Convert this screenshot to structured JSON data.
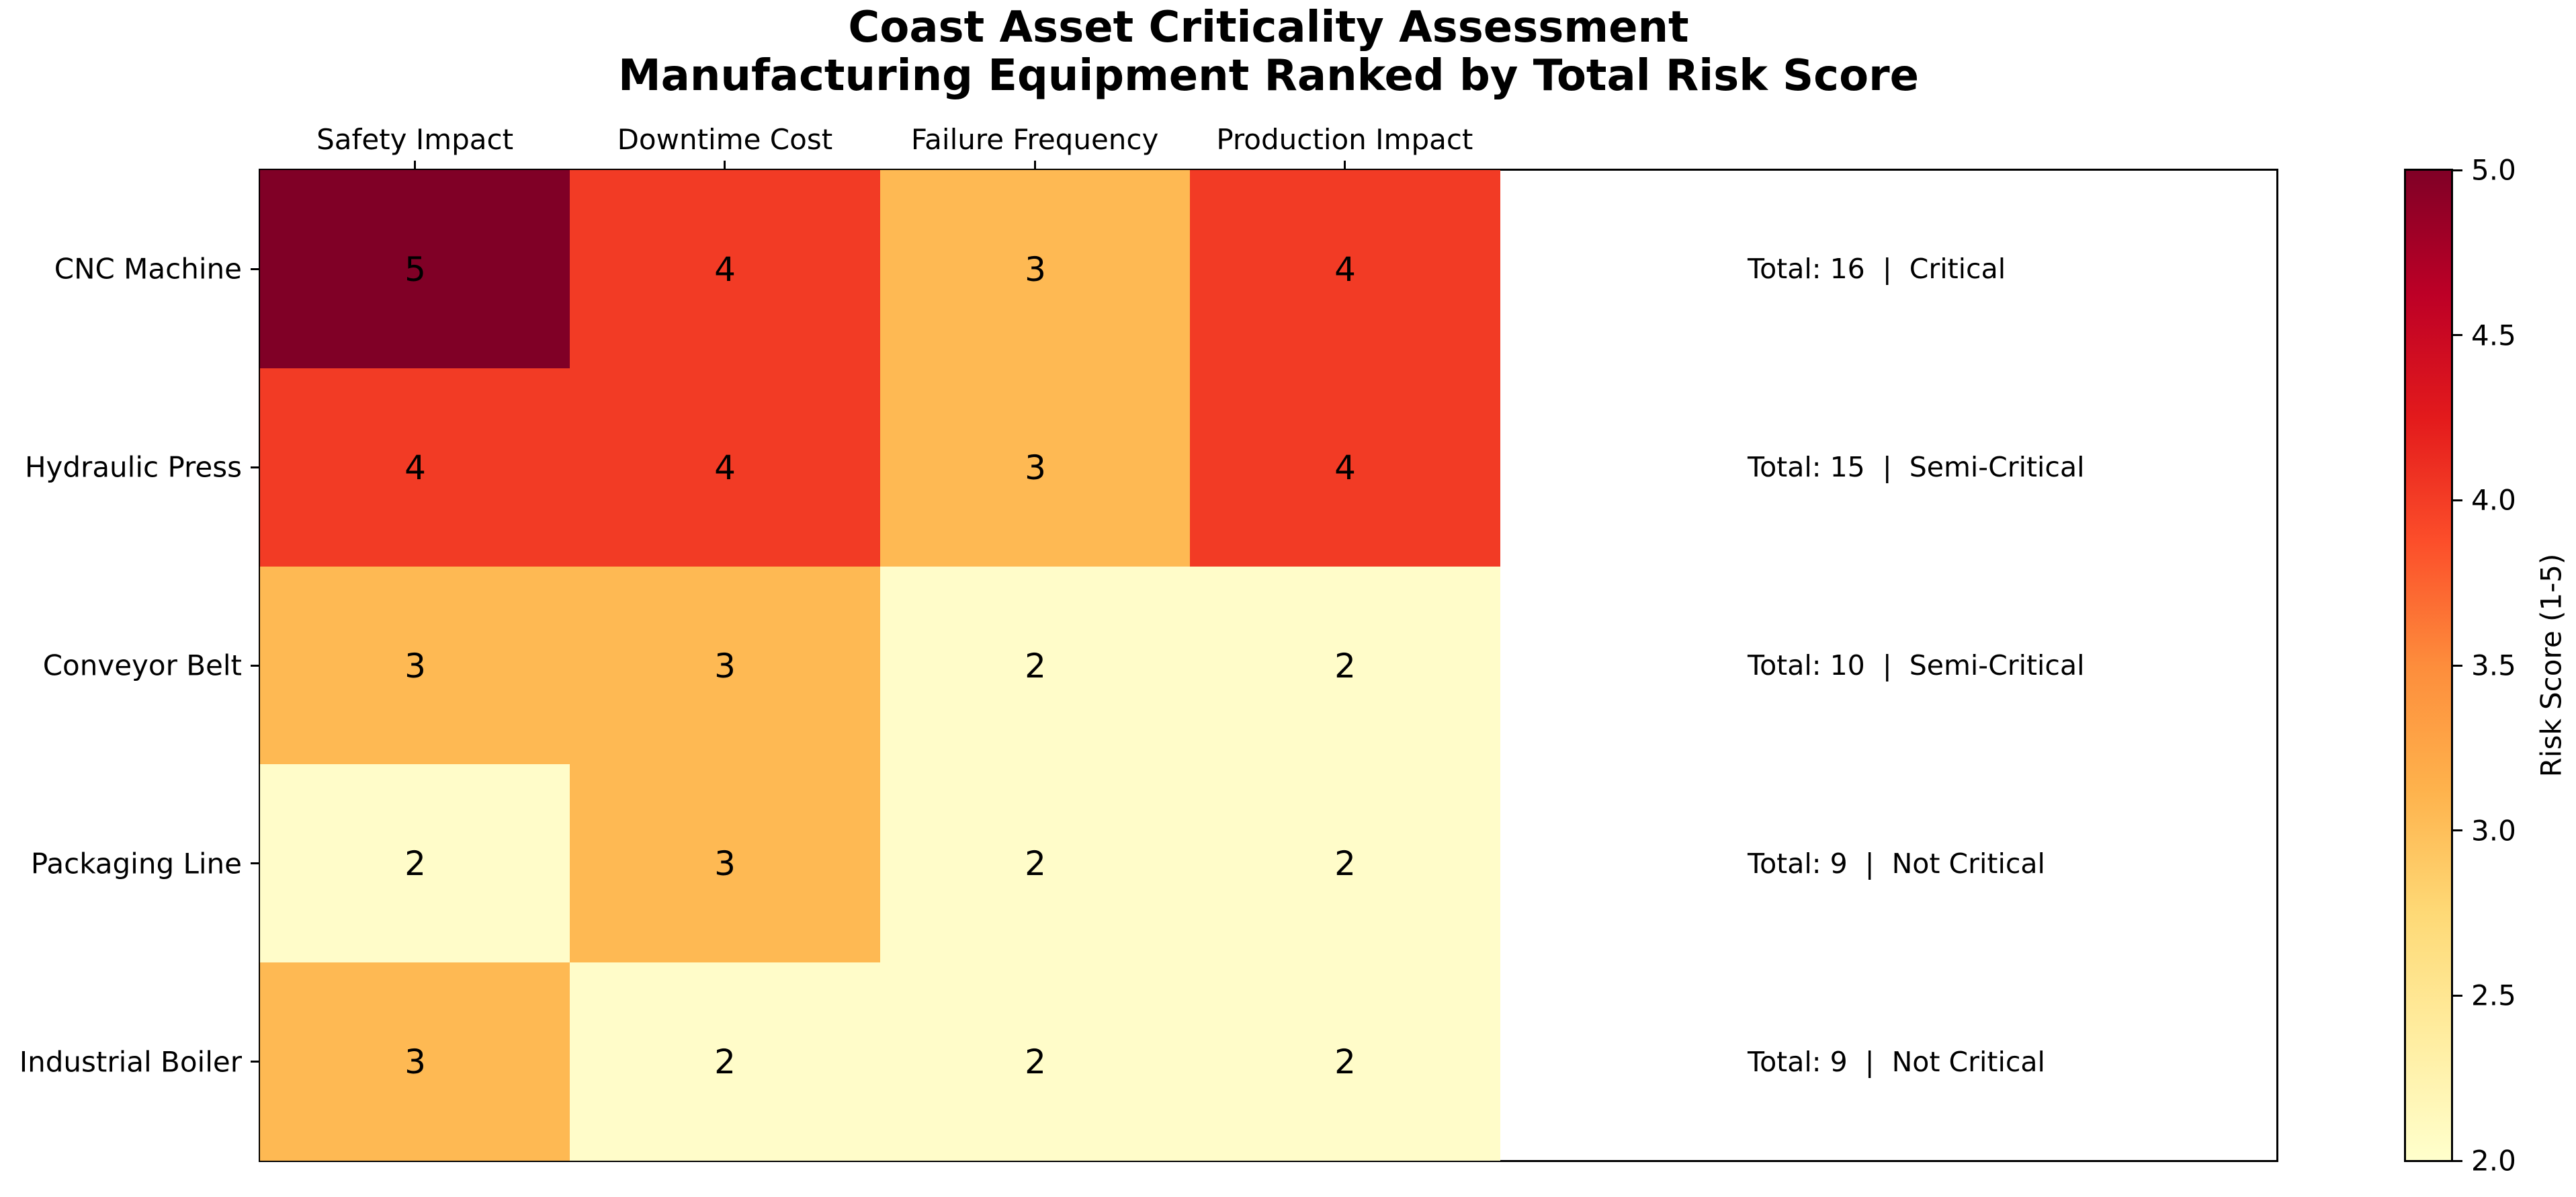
{
  "chart_data": {
    "type": "heatmap",
    "title_line1": "Coast Asset Criticality Assessment",
    "title_line2": "Manufacturing Equipment Ranked by Total Risk Score",
    "columns": [
      "Safety Impact",
      "Downtime Cost",
      "Failure Frequency",
      "Production Impact"
    ],
    "rows": [
      {
        "label": "CNC Machine",
        "values": [
          5,
          4,
          3,
          4
        ],
        "total": 16,
        "criticality": "Critical",
        "annotation": "Total: 16  |  Critical"
      },
      {
        "label": "Hydraulic Press",
        "values": [
          4,
          4,
          3,
          4
        ],
        "total": 15,
        "criticality": "Semi-Critical",
        "annotation": "Total: 15  |  Semi-Critical"
      },
      {
        "label": "Conveyor Belt",
        "values": [
          3,
          3,
          2,
          2
        ],
        "total": 10,
        "criticality": "Semi-Critical",
        "annotation": "Total: 10  |  Semi-Critical"
      },
      {
        "label": "Packaging Line",
        "values": [
          2,
          3,
          2,
          2
        ],
        "total": 9,
        "criticality": "Not Critical",
        "annotation": "Total: 9  |  Not Critical"
      },
      {
        "label": "Industrial Boiler",
        "values": [
          3,
          2,
          2,
          2
        ],
        "total": 9,
        "criticality": "Not Critical",
        "annotation": "Total: 9  |  Not Critical"
      }
    ],
    "colorbar": {
      "label": "Risk Score (1-5)",
      "ticks": [
        "5.0",
        "4.5",
        "4.0",
        "3.5",
        "3.0",
        "2.5",
        "2.0"
      ],
      "vmin": 2.0,
      "vmax": 5.0
    },
    "value_colors": {
      "2": "#fffcc9",
      "3": "#feb953",
      "4": "#f23b25",
      "5": "#800026"
    },
    "colormap_stops": [
      "#ffffcc",
      "#ffeda0",
      "#fed976",
      "#feb24c",
      "#fd8d3c",
      "#fc4e2a",
      "#e31a1c",
      "#bd0026",
      "#800026"
    ],
    "grid": false,
    "legend": "none",
    "xlabel": "",
    "ylabel": ""
  }
}
